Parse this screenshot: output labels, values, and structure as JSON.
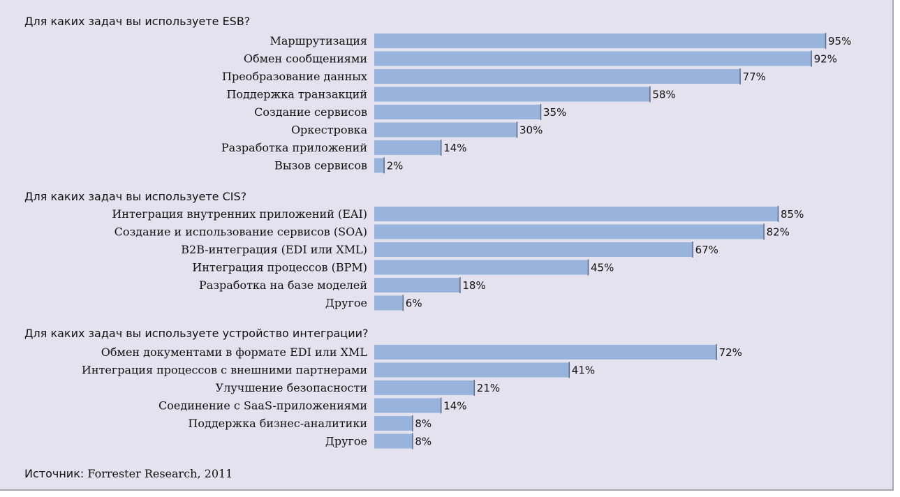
{
  "colors": {
    "background": "#e4e2ee",
    "bar_fill": "#98b4dd",
    "bar_edge": "#5f6b80",
    "text": "#111111"
  },
  "chart_data": [
    {
      "type": "bar",
      "orientation": "horizontal",
      "title": "Для каких задач вы используете ESB?",
      "categories": [
        "Маршрутизация",
        "Обмен сообщениями",
        "Преобразование данных",
        "Поддержка транзакций",
        "Создание сервисов",
        "Оркестровка",
        "Разработка приложений",
        "Вызов сервисов"
      ],
      "values": [
        95,
        92,
        77,
        58,
        35,
        30,
        14,
        2
      ],
      "value_labels": [
        "95%",
        "92%",
        "77%",
        "58%",
        "35%",
        "30%",
        "14%",
        "2%"
      ],
      "xlim": [
        0,
        100
      ],
      "grid": false,
      "legend": "none"
    },
    {
      "type": "bar",
      "orientation": "horizontal",
      "title": "Для каких задач вы используете CIS?",
      "categories": [
        "Интеграция внутренних приложений (EAI)",
        "Создание и использование сервисов (SOA)",
        "B2B-интеграция (EDI или XML)",
        "Интеграция процессов (BPM)",
        "Разработка на базе моделей",
        "Другое"
      ],
      "values": [
        85,
        82,
        67,
        45,
        18,
        6
      ],
      "value_labels": [
        "85%",
        "82%",
        "67%",
        "45%",
        "18%",
        "6%"
      ],
      "xlim": [
        0,
        100
      ],
      "grid": false,
      "legend": "none"
    },
    {
      "type": "bar",
      "orientation": "horizontal",
      "title": "Для каких задач вы используете устройство интеграции?",
      "categories": [
        "Обмен документами в формате EDI или XML",
        "Интеграция процессов с внешними партнерами",
        "Улучшение безопасности",
        "Соединение с SaaS-приложениями",
        "Поддержка бизнес-аналитики",
        "Другое"
      ],
      "values": [
        72,
        41,
        21,
        14,
        8,
        8
      ],
      "value_labels": [
        "72%",
        "41%",
        "21%",
        "14%",
        "8%",
        "8%"
      ],
      "xlim": [
        0,
        100
      ],
      "grid": false,
      "legend": "none"
    }
  ],
  "source": {
    "prefix": "Источник:",
    "text": "Forrester Research, 2011"
  }
}
